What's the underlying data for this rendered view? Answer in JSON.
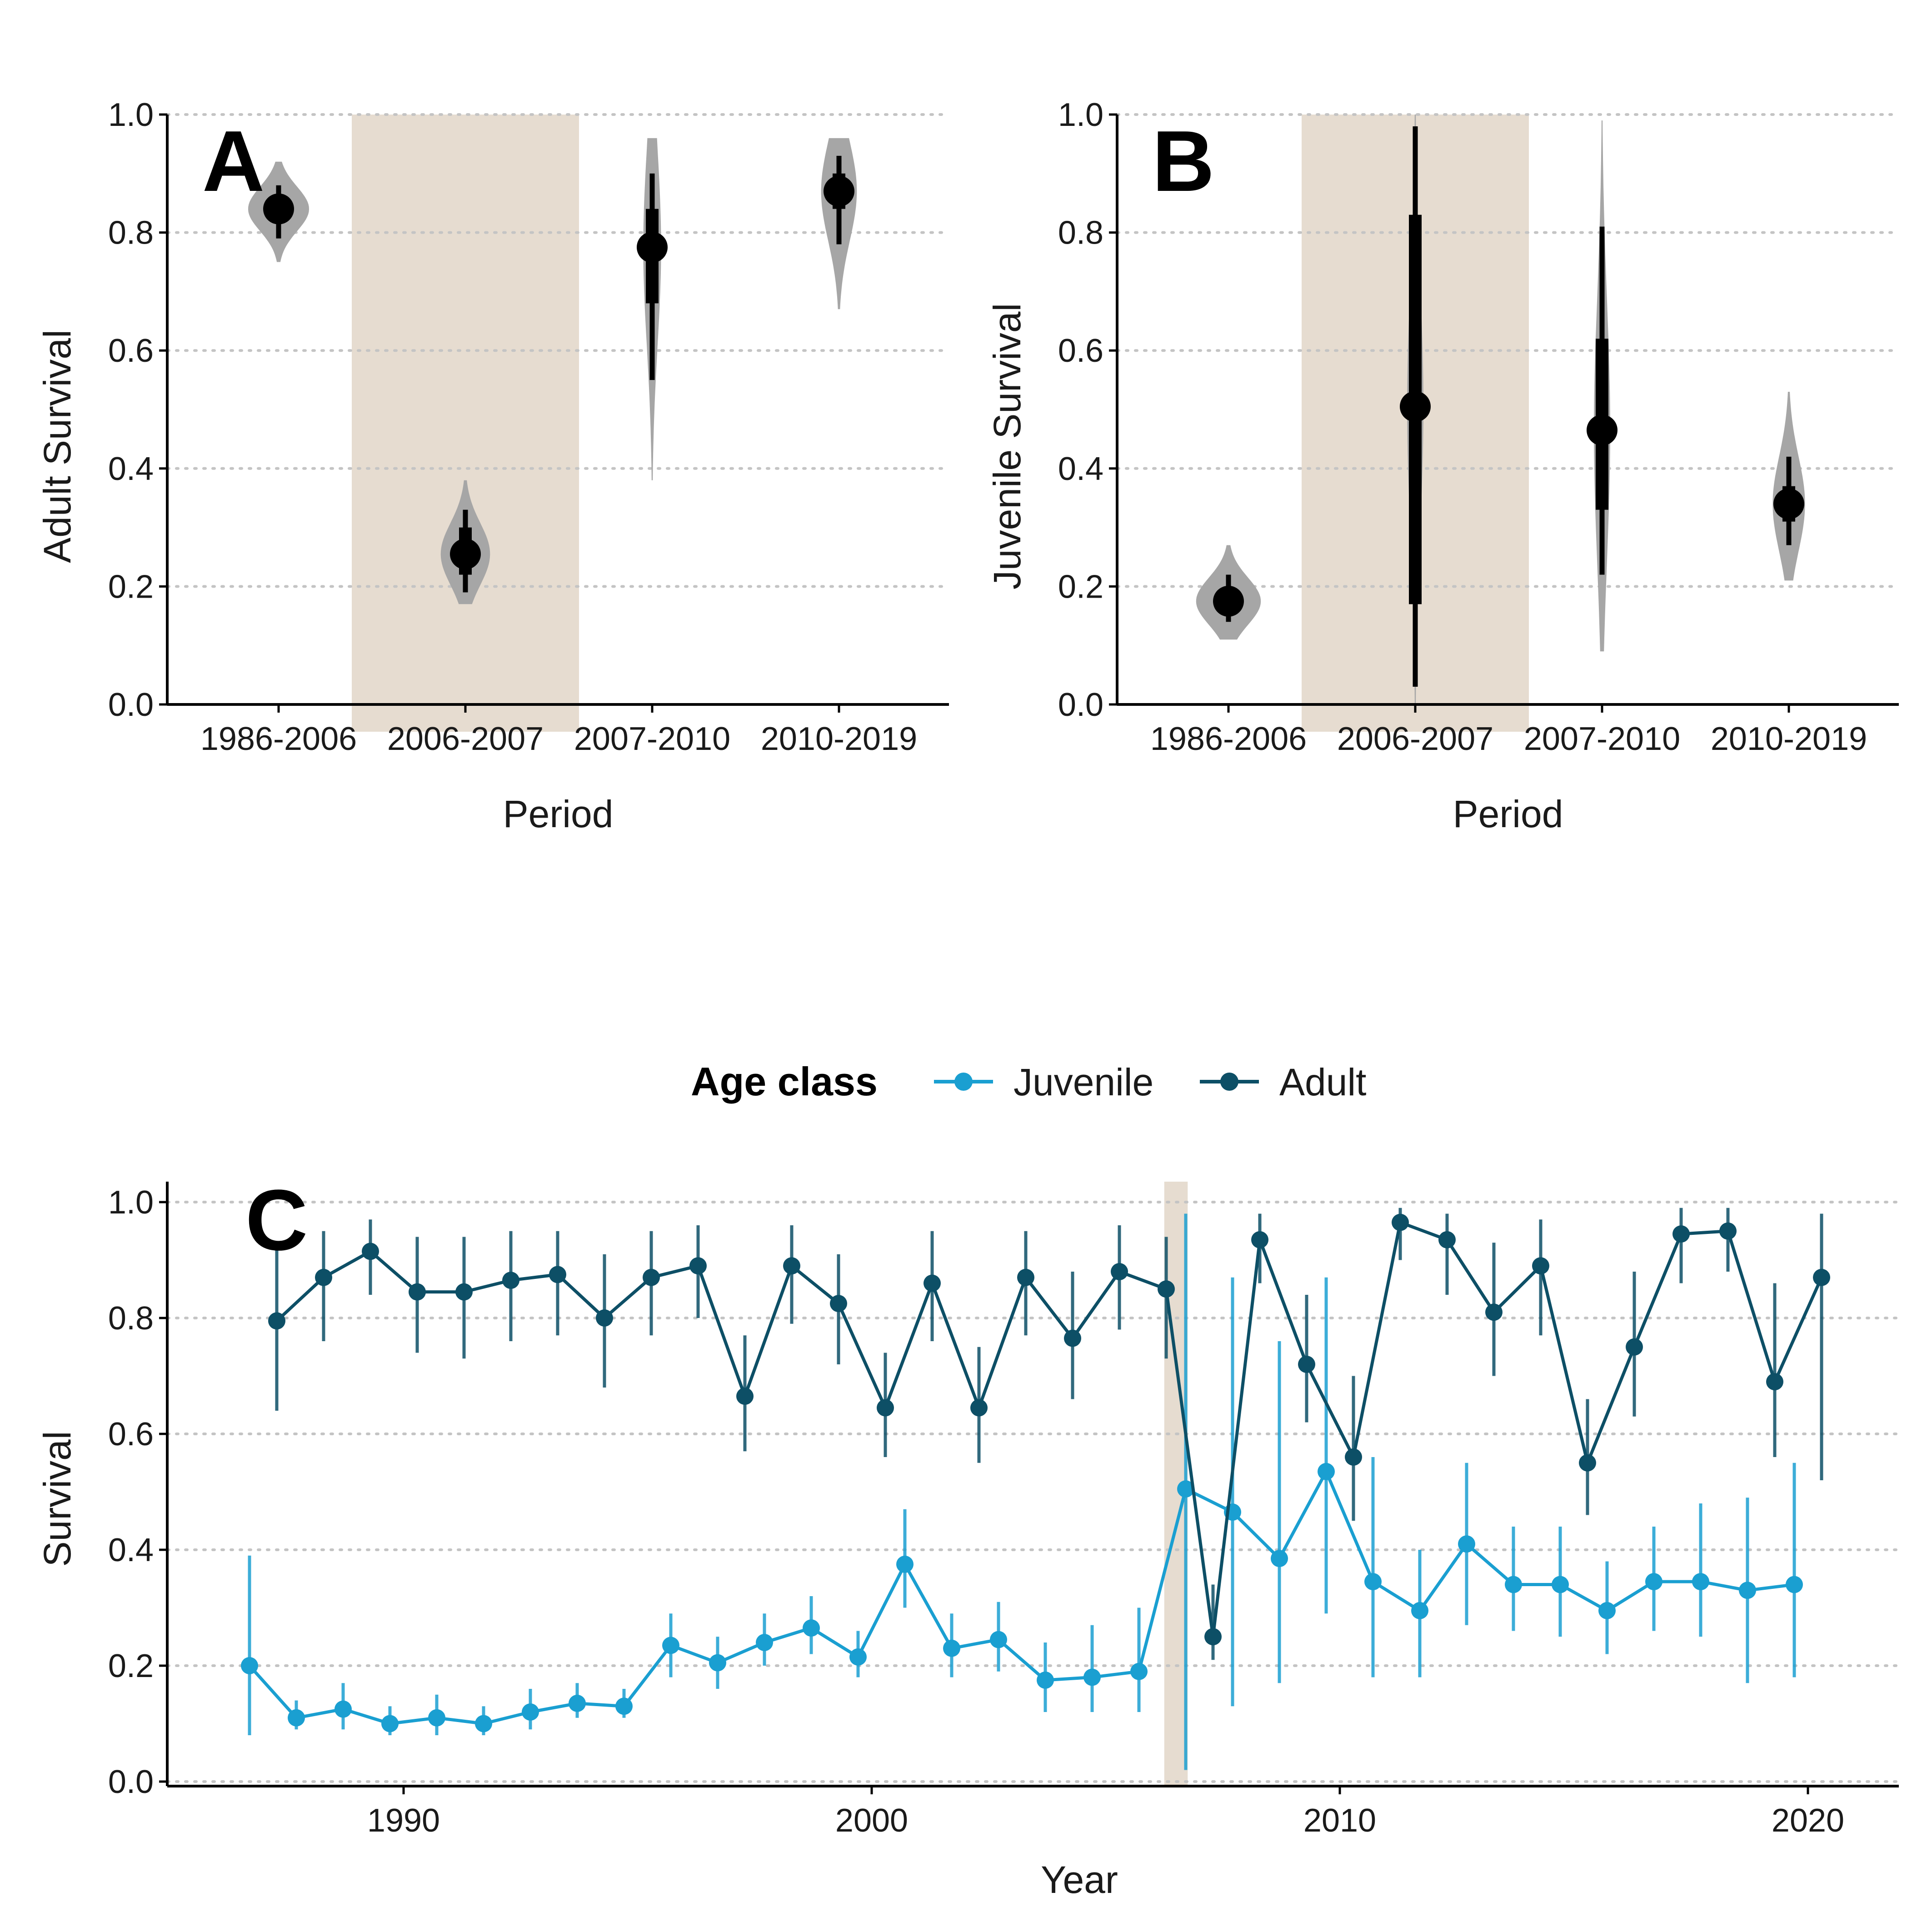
{
  "chart_data": [
    {
      "panel": "A",
      "type": "interval",
      "ylabel": "Adult Survival",
      "xlabel": "Period",
      "categories": [
        "1986-2006",
        "2006-2007",
        "2007-2010",
        "2010-2019"
      ],
      "ylim": [
        0,
        1
      ],
      "yticks": [
        "0.0",
        "0.2",
        "0.4",
        "0.6",
        "0.8",
        "1.0"
      ],
      "grid": "horizontal dotted",
      "shaded_category": "2006-2007",
      "shade_color": "#e6dcd0",
      "points": [
        {
          "period": "1986-2006",
          "median": 0.84,
          "inner": [
            0.82,
            0.86
          ],
          "outer": [
            0.79,
            0.88
          ],
          "dist": [
            0.75,
            0.92
          ]
        },
        {
          "period": "2006-2007",
          "median": 0.255,
          "inner": [
            0.22,
            0.3
          ],
          "outer": [
            0.19,
            0.33
          ],
          "dist": [
            0.17,
            0.38
          ]
        },
        {
          "period": "2007-2010",
          "median": 0.775,
          "inner": [
            0.68,
            0.84
          ],
          "outer": [
            0.55,
            0.9
          ],
          "dist": [
            0.38,
            0.96
          ]
        },
        {
          "period": "2010-2019",
          "median": 0.87,
          "inner": [
            0.84,
            0.9
          ],
          "outer": [
            0.78,
            0.93
          ],
          "dist": [
            0.67,
            0.96
          ]
        }
      ]
    },
    {
      "panel": "B",
      "type": "interval",
      "ylabel": "Juvenile Survival",
      "xlabel": "Period",
      "categories": [
        "1986-2006",
        "2006-2007",
        "2007-2010",
        "2010-2019"
      ],
      "ylim": [
        0,
        1
      ],
      "yticks": [
        "0.0",
        "0.2",
        "0.4",
        "0.6",
        "0.8",
        "1.0"
      ],
      "grid": "horizontal dotted",
      "shaded_category": "2006-2007",
      "shade_color": "#e6dcd0",
      "points": [
        {
          "period": "1986-2006",
          "median": 0.175,
          "inner": [
            0.16,
            0.19
          ],
          "outer": [
            0.14,
            0.22
          ],
          "dist": [
            0.11,
            0.27
          ]
        },
        {
          "period": "2006-2007",
          "median": 0.505,
          "inner": [
            0.17,
            0.83
          ],
          "outer": [
            0.03,
            0.98
          ],
          "dist": [
            0.0,
            1.0
          ]
        },
        {
          "period": "2007-2010",
          "median": 0.465,
          "inner": [
            0.33,
            0.62
          ],
          "outer": [
            0.22,
            0.81
          ],
          "dist": [
            0.09,
            0.99
          ]
        },
        {
          "period": "2010-2019",
          "median": 0.34,
          "inner": [
            0.31,
            0.37
          ],
          "outer": [
            0.27,
            0.42
          ],
          "dist": [
            0.21,
            0.53
          ]
        }
      ]
    },
    {
      "panel": "C",
      "type": "line",
      "xlabel": "Year",
      "ylabel": "Survival",
      "xlim": [
        1985,
        2022
      ],
      "xticks": [
        1990,
        2000,
        2010,
        2020
      ],
      "ylim": [
        0,
        1
      ],
      "yticks": [
        "0.0",
        "0.2",
        "0.4",
        "0.6",
        "0.8",
        "1.0"
      ],
      "grid": "horizontal dotted",
      "legend": {
        "title": "Age class",
        "position": "top"
      },
      "shaded_x": [
        2006.25,
        2006.75
      ],
      "shade_color": "#e6dcd0",
      "series": [
        {
          "name": "Juvenile",
          "color": "#1a9fd1",
          "x": [
            1987,
            1988,
            1989,
            1990,
            1991,
            1992,
            1993,
            1994,
            1995,
            1996,
            1997,
            1998,
            1999,
            2000,
            2001,
            2002,
            2003,
            2004,
            2005,
            2006,
            2007,
            2008,
            2009,
            2010,
            2011,
            2012,
            2013,
            2014,
            2015,
            2016,
            2017,
            2018,
            2019,
            2020
          ],
          "y": [
            0.2,
            0.11,
            0.125,
            0.1,
            0.11,
            0.1,
            0.12,
            0.135,
            0.13,
            0.235,
            0.205,
            0.24,
            0.265,
            0.215,
            0.375,
            0.23,
            0.245,
            0.175,
            0.18,
            0.19,
            0.505,
            0.465,
            0.385,
            0.535,
            0.345,
            0.295,
            0.41,
            0.34,
            0.34,
            0.295,
            0.345,
            0.345,
            0.33,
            0.34
          ],
          "lower": [
            0.08,
            0.09,
            0.09,
            0.08,
            0.08,
            0.08,
            0.09,
            0.11,
            0.11,
            0.18,
            0.16,
            0.2,
            0.22,
            0.18,
            0.3,
            0.18,
            0.19,
            0.12,
            0.12,
            0.12,
            0.02,
            0.13,
            0.17,
            0.29,
            0.18,
            0.18,
            0.27,
            0.26,
            0.25,
            0.22,
            0.26,
            0.25,
            0.17,
            0.18
          ],
          "upper": [
            0.39,
            0.14,
            0.17,
            0.13,
            0.15,
            0.13,
            0.16,
            0.17,
            0.16,
            0.29,
            0.25,
            0.29,
            0.32,
            0.26,
            0.47,
            0.29,
            0.31,
            0.24,
            0.27,
            0.3,
            0.98,
            0.87,
            0.76,
            0.87,
            0.56,
            0.4,
            0.55,
            0.44,
            0.44,
            0.38,
            0.44,
            0.48,
            0.49,
            0.55
          ]
        },
        {
          "name": "Adult",
          "color": "#0d4f66",
          "x": [
            1987,
            1988,
            1989,
            1990,
            1991,
            1992,
            1993,
            1994,
            1995,
            1996,
            1997,
            1998,
            1999,
            2000,
            2001,
            2002,
            2003,
            2004,
            2005,
            2006,
            2007,
            2008,
            2009,
            2010,
            2011,
            2012,
            2013,
            2014,
            2015,
            2016,
            2017,
            2018,
            2019,
            2020
          ],
          "y": [
            0.795,
            0.87,
            0.915,
            0.845,
            0.845,
            0.865,
            0.875,
            0.8,
            0.87,
            0.89,
            0.665,
            0.89,
            0.825,
            0.645,
            0.86,
            0.645,
            0.87,
            0.765,
            0.88,
            0.85,
            0.25,
            0.935,
            0.72,
            0.56,
            0.965,
            0.935,
            0.81,
            0.89,
            0.55,
            0.75,
            0.945,
            0.95,
            0.69,
            0.87
          ],
          "lower": [
            0.64,
            0.76,
            0.84,
            0.74,
            0.73,
            0.76,
            0.77,
            0.68,
            0.77,
            0.8,
            0.57,
            0.79,
            0.72,
            0.56,
            0.76,
            0.55,
            0.77,
            0.66,
            0.78,
            0.73,
            0.21,
            0.86,
            0.62,
            0.45,
            0.9,
            0.84,
            0.7,
            0.77,
            0.46,
            0.63,
            0.86,
            0.88,
            0.56,
            0.52
          ],
          "upper": [
            0.93,
            0.95,
            0.97,
            0.94,
            0.94,
            0.95,
            0.95,
            0.91,
            0.95,
            0.96,
            0.77,
            0.96,
            0.91,
            0.74,
            0.95,
            0.75,
            0.95,
            0.88,
            0.96,
            0.94,
            0.34,
            0.98,
            0.84,
            0.7,
            0.99,
            0.98,
            0.93,
            0.97,
            0.66,
            0.88,
            0.99,
            0.99,
            0.86,
            0.98
          ]
        }
      ]
    }
  ]
}
